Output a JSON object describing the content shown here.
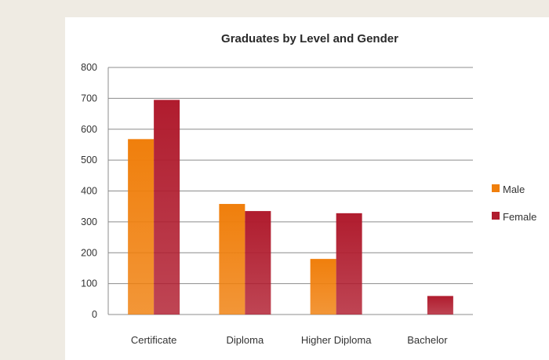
{
  "chart_data": {
    "type": "bar",
    "title": "Graduates by Level and Gender",
    "xlabel": "",
    "ylabel": "",
    "categories": [
      "Certificate",
      "Diploma",
      "Higher Diploma",
      "Bachelor"
    ],
    "series": [
      {
        "name": "Male",
        "values": [
          568,
          358,
          180,
          0
        ],
        "color": "#f07f0c"
      },
      {
        "name": "Female",
        "values": [
          695,
          335,
          328,
          60
        ],
        "color": "#b01c2e"
      }
    ],
    "ylim": [
      0,
      800
    ],
    "yticks": [
      "0",
      "100",
      "200",
      "300",
      "400",
      "500",
      "600",
      "700",
      "800"
    ],
    "grid": true,
    "legend_position": "right"
  }
}
